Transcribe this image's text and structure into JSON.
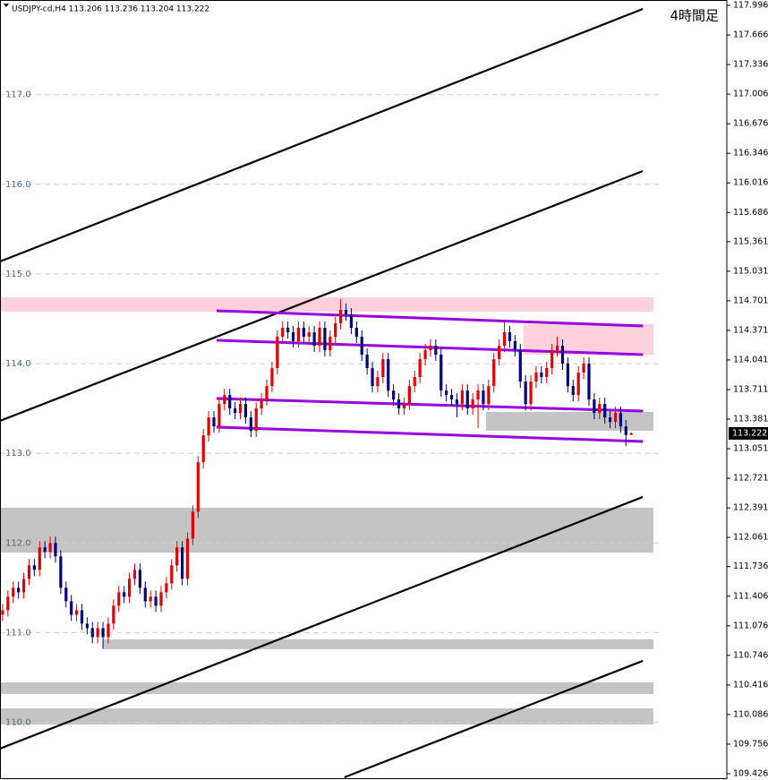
{
  "chart_data": {
    "type": "candlestick",
    "title": "4時間足",
    "header": "USDJPY-cd,H4  113.206 113.236 113.204 113.222",
    "xlim": [
      -0.5,
      137.1
    ],
    "ylim": [
      109.366,
      118.056
    ],
    "yticks": [
      117.996,
      117.666,
      117.336,
      117.006,
      116.676,
      116.346,
      116.016,
      115.686,
      115.361,
      115.031,
      114.701,
      114.371,
      114.041,
      113.711,
      113.381,
      113.051,
      112.721,
      112.391,
      112.061,
      111.736,
      111.406,
      111.076,
      110.746,
      110.416,
      110.086,
      109.756,
      109.426
    ],
    "grid_levels": [
      {
        "value": 117,
        "label": "117.0"
      },
      {
        "value": 116,
        "label": "116.0"
      },
      {
        "value": 115,
        "label": "115.0"
      },
      {
        "value": 114,
        "label": "114.0"
      },
      {
        "value": 113,
        "label": "113.0"
      },
      {
        "value": 112,
        "label": "112.0"
      },
      {
        "value": 111,
        "label": "111.0"
      },
      {
        "value": 110,
        "label": "110.0"
      }
    ],
    "up_color": "#e00000",
    "down_color": "#00007a",
    "current_price": 113.222,
    "open": [
      111.2,
      111.25,
      111.4,
      111.5,
      111.45,
      111.6,
      111.75,
      111.7,
      111.95,
      111.9,
      112.0,
      111.85,
      111.5,
      111.35,
      111.2,
      111.25,
      111.1,
      111.05,
      110.95,
      111.05,
      110.95,
      111.1,
      111.3,
      111.45,
      111.4,
      111.6,
      111.7,
      111.5,
      111.35,
      111.4,
      111.3,
      111.45,
      111.55,
      111.75,
      111.95,
      111.6,
      112.05,
      112.35,
      112.9,
      113.2,
      113.4,
      113.3,
      113.55,
      113.65,
      113.5,
      113.45,
      113.55,
      113.4,
      113.25,
      113.5,
      113.6,
      113.75,
      113.95,
      114.3,
      114.4,
      114.35,
      114.25,
      114.4,
      114.3,
      114.35,
      114.2,
      114.4,
      114.15,
      114.3,
      114.45,
      114.6,
      114.55,
      114.4,
      114.3,
      114.1,
      113.95,
      113.75,
      113.85,
      114.05,
      113.7,
      113.6,
      113.5,
      113.55,
      113.75,
      113.85,
      114.05,
      114.15,
      114.2,
      114.1,
      113.7,
      113.65,
      113.6,
      113.55,
      113.7,
      113.5,
      113.6,
      113.7,
      113.55,
      113.75,
      114.05,
      114.2,
      114.35,
      114.25,
      114.15,
      113.8,
      113.55,
      113.8,
      113.9,
      113.85,
      113.95,
      114.15,
      114.2,
      114.0,
      113.75,
      113.65,
      113.9,
      114.0,
      113.6,
      113.45,
      113.55,
      113.4,
      113.35,
      113.45,
      113.3,
      113.206
    ],
    "high": [
      111.32,
      111.47,
      111.57,
      111.57,
      111.67,
      111.82,
      111.82,
      112.02,
      112.02,
      112.07,
      112.07,
      111.92,
      111.57,
      111.42,
      111.32,
      111.32,
      111.17,
      111.12,
      111.12,
      111.12,
      111.17,
      111.37,
      111.52,
      111.52,
      111.67,
      111.77,
      111.77,
      111.57,
      111.47,
      111.47,
      111.52,
      111.62,
      111.82,
      112.02,
      112.02,
      112.12,
      112.42,
      112.97,
      113.27,
      113.47,
      113.47,
      113.62,
      113.72,
      113.72,
      113.57,
      113.62,
      113.62,
      113.47,
      113.57,
      113.67,
      113.82,
      114.02,
      114.37,
      114.47,
      114.47,
      114.42,
      114.47,
      114.47,
      114.42,
      114.42,
      114.47,
      114.47,
      114.37,
      114.52,
      114.72,
      114.67,
      114.62,
      114.47,
      114.37,
      114.17,
      114.02,
      113.92,
      114.12,
      114.12,
      113.77,
      113.67,
      113.62,
      113.82,
      113.92,
      114.12,
      114.22,
      114.27,
      114.27,
      114.17,
      113.77,
      113.72,
      113.67,
      113.77,
      113.77,
      113.67,
      113.77,
      113.77,
      113.82,
      114.12,
      114.27,
      114.47,
      114.42,
      114.32,
      114.22,
      113.87,
      113.87,
      113.97,
      113.97,
      114.02,
      114.22,
      114.3,
      114.27,
      114.07,
      113.82,
      113.97,
      114.07,
      114.07,
      113.67,
      113.62,
      113.62,
      113.47,
      113.52,
      113.52,
      113.37,
      113.236
    ],
    "low": [
      111.13,
      111.18,
      111.33,
      111.38,
      111.38,
      111.53,
      111.63,
      111.63,
      111.83,
      111.83,
      111.78,
      111.43,
      111.28,
      111.13,
      111.13,
      111.03,
      110.98,
      110.88,
      110.88,
      110.82,
      110.88,
      111.03,
      111.23,
      111.33,
      111.33,
      111.53,
      111.43,
      111.28,
      111.28,
      111.23,
      111.23,
      111.38,
      111.48,
      111.68,
      111.53,
      111.53,
      111.98,
      112.28,
      112.83,
      113.13,
      113.23,
      113.23,
      113.48,
      113.43,
      113.38,
      113.38,
      113.33,
      113.18,
      113.18,
      113.43,
      113.53,
      113.68,
      113.88,
      114.23,
      114.28,
      114.18,
      114.18,
      114.23,
      114.23,
      114.13,
      114.13,
      114.08,
      114.08,
      114.23,
      114.38,
      114.48,
      114.33,
      114.23,
      114.03,
      113.88,
      113.68,
      113.68,
      113.78,
      113.63,
      113.53,
      113.43,
      113.43,
      113.48,
      113.68,
      113.78,
      113.98,
      114.08,
      114.03,
      113.63,
      113.58,
      113.53,
      113.4,
      113.48,
      113.43,
      113.43,
      113.28,
      113.48,
      113.48,
      113.68,
      113.98,
      114.13,
      114.18,
      114.08,
      113.73,
      113.48,
      113.48,
      113.73,
      113.78,
      113.78,
      113.88,
      114.08,
      113.93,
      113.68,
      113.58,
      113.58,
      113.83,
      113.53,
      113.38,
      113.38,
      113.33,
      113.28,
      113.28,
      113.23,
      113.08,
      113.204
    ],
    "close": [
      111.25,
      111.4,
      111.5,
      111.45,
      111.6,
      111.75,
      111.7,
      111.95,
      111.9,
      112.0,
      111.85,
      111.5,
      111.35,
      111.2,
      111.25,
      111.1,
      111.05,
      110.95,
      111.05,
      110.95,
      111.1,
      111.3,
      111.45,
      111.4,
      111.6,
      111.7,
      111.5,
      111.35,
      111.4,
      111.3,
      111.45,
      111.55,
      111.75,
      111.95,
      111.6,
      112.05,
      112.35,
      112.9,
      113.2,
      113.4,
      113.3,
      113.55,
      113.65,
      113.5,
      113.45,
      113.55,
      113.4,
      113.25,
      113.5,
      113.6,
      113.75,
      113.95,
      114.3,
      114.4,
      114.35,
      114.25,
      114.4,
      114.3,
      114.35,
      114.2,
      114.4,
      114.15,
      114.3,
      114.45,
      114.6,
      114.55,
      114.4,
      114.3,
      114.1,
      113.95,
      113.75,
      113.85,
      114.05,
      113.7,
      113.6,
      113.5,
      113.55,
      113.75,
      113.85,
      114.05,
      114.15,
      114.2,
      114.1,
      113.7,
      113.65,
      113.6,
      113.55,
      113.7,
      113.5,
      113.6,
      113.7,
      113.55,
      113.75,
      114.05,
      114.2,
      114.35,
      114.25,
      114.15,
      113.8,
      113.55,
      113.8,
      113.9,
      113.85,
      113.95,
      114.15,
      114.2,
      114.0,
      113.75,
      113.65,
      113.9,
      114.0,
      113.6,
      113.45,
      113.55,
      113.4,
      113.35,
      113.45,
      113.3,
      113.206,
      113.222
    ],
    "zones": [
      {
        "x": [
          -0.5,
          123.2
        ],
        "y": [
          114.74,
          114.58
        ],
        "color": "#ffd1dc"
      },
      {
        "x": [
          98.6,
          123.2
        ],
        "y": [
          114.44,
          114.101
        ],
        "color": "#ffd1dc"
      },
      {
        "x": [
          91.5,
          123.2
        ],
        "y": [
          113.461,
          113.252
        ],
        "color": "#c4c4c4"
      },
      {
        "x": [
          -0.5,
          123.2
        ],
        "y": [
          112.393,
          111.893
        ],
        "color": "#c4c4c4"
      },
      {
        "x": [
          19.0,
          123.2
        ],
        "y": [
          110.925,
          110.815
        ],
        "color": "#c4c4c4"
      },
      {
        "x": [
          -0.5,
          123.2
        ],
        "y": [
          110.445,
          110.315
        ],
        "color": "#c4c4c4"
      },
      {
        "x": [
          -0.5,
          123.2
        ],
        "y": [
          110.155,
          109.975
        ],
        "color": "#c4c4c4"
      }
    ],
    "trendlines": [
      {
        "x": [
          -0.5,
          121.2
        ],
        "y": [
          115.139,
          117.956
        ],
        "color": "#000000"
      },
      {
        "x": [
          -0.5,
          121.2
        ],
        "y": [
          113.362,
          116.148
        ],
        "color": "#000000"
      },
      {
        "x": [
          -0.5,
          121.2
        ],
        "y": [
          109.706,
          112.513
        ],
        "color": "#000000"
      },
      {
        "x": [
          64.7,
          121.2
        ],
        "y": [
          109.386,
          110.685
        ],
        "color": "#000000"
      },
      {
        "x": [
          40.5,
          121.2
        ],
        "y": [
          114.59,
          114.42
        ],
        "color": "#9900dd"
      },
      {
        "x": [
          40.5,
          121.2
        ],
        "y": [
          114.261,
          114.101
        ],
        "color": "#9900dd"
      },
      {
        "x": [
          40.5,
          121.2
        ],
        "y": [
          113.611,
          113.471
        ],
        "color": "#9900dd"
      },
      {
        "x": [
          40.5,
          121.2
        ],
        "y": [
          113.292,
          113.132
        ],
        "color": "#9900dd"
      }
    ]
  }
}
